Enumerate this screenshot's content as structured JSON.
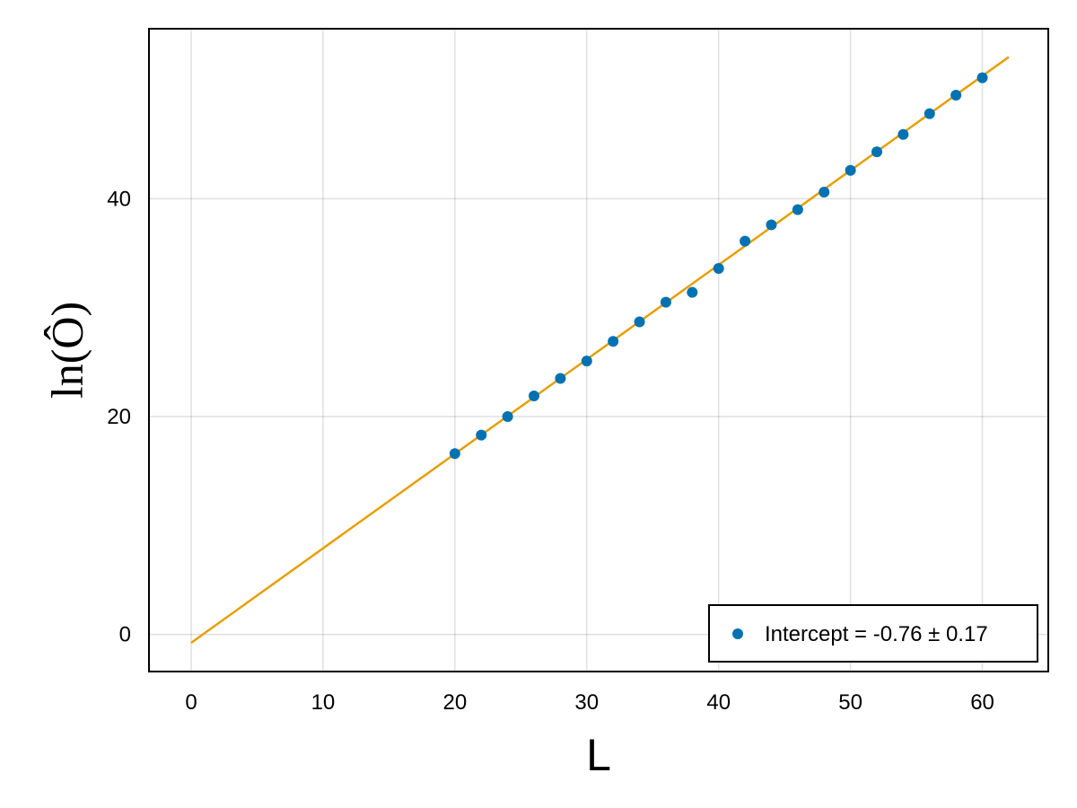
{
  "chart_data": {
    "type": "scatter",
    "xlabel": "L",
    "ylabel": "ln(Ô)",
    "xlim": [
      -3.2,
      65
    ],
    "ylim": [
      -3.4,
      55.6
    ],
    "xticks": [
      0,
      10,
      20,
      30,
      40,
      50,
      60
    ],
    "yticks": [
      0,
      20,
      40
    ],
    "grid": true,
    "legend_position": "bottom-right",
    "series": [
      {
        "kind": "scatter",
        "name": "Intercept = -0.76 ± 0.17",
        "color": "#0072b2",
        "x": [
          20,
          22,
          24,
          26,
          28,
          30,
          32,
          34,
          36,
          38,
          40,
          42,
          44,
          46,
          48,
          50,
          52,
          54,
          56,
          58,
          60
        ],
        "y": [
          16.6,
          18.3,
          20.0,
          21.9,
          23.5,
          25.1,
          26.9,
          28.7,
          30.5,
          31.4,
          33.6,
          36.1,
          37.6,
          39.0,
          40.6,
          42.6,
          44.3,
          45.9,
          47.8,
          49.5,
          51.1
        ]
      },
      {
        "kind": "line",
        "color": "#e69f00",
        "x": [
          0,
          62
        ],
        "y": [
          -0.76,
          53.0
        ]
      }
    ]
  }
}
